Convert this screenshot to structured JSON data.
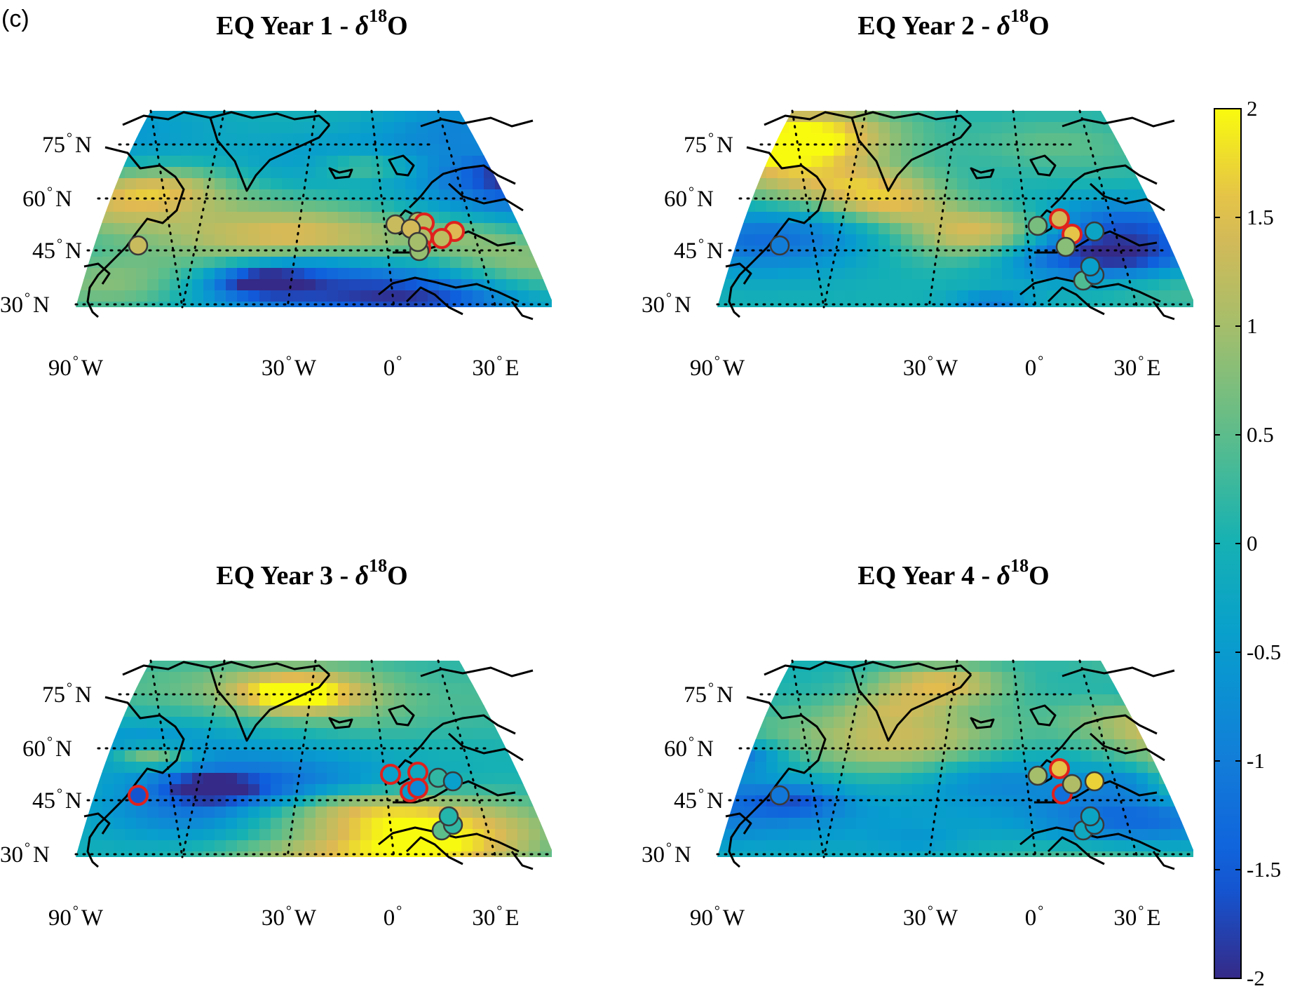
{
  "panel_label": "(c)",
  "maps": [
    {
      "title_prefix": "EQ Year 1 - ",
      "delta": "δ",
      "iso": "18",
      "elem": "O",
      "seed": 11
    },
    {
      "title_prefix": "EQ Year 2 - ",
      "delta": "δ",
      "iso": "18",
      "elem": "O",
      "seed": 23
    },
    {
      "title_prefix": "EQ Year 3 - ",
      "delta": "δ",
      "iso": "18",
      "elem": "O",
      "seed": 37
    },
    {
      "title_prefix": "EQ Year 4 - ",
      "delta": "δ",
      "iso": "18",
      "elem": "O",
      "seed": 53
    }
  ],
  "lat_labels": [
    {
      "value": "75",
      "hemi": "N"
    },
    {
      "value": "60",
      "hemi": "N"
    },
    {
      "value": "45",
      "hemi": "N"
    },
    {
      "value": "30",
      "hemi": "N"
    }
  ],
  "lon_labels": [
    {
      "value": "90",
      "hemi": "W"
    },
    {
      "value": "30",
      "hemi": "W"
    },
    {
      "value": "0",
      "hemi": ""
    },
    {
      "value": "30",
      "hemi": "E"
    }
  ],
  "colorbar": {
    "min": -2,
    "max": 2,
    "ticks": [
      "2",
      "1.5",
      "1",
      "0.5",
      "0",
      "-0.5",
      "-1",
      "-1.5",
      "-2"
    ],
    "colormap": "parula"
  },
  "marker_colors": {
    "station_outline": "#e0211d",
    "plain_outline": "#3a3a3a"
  }
}
